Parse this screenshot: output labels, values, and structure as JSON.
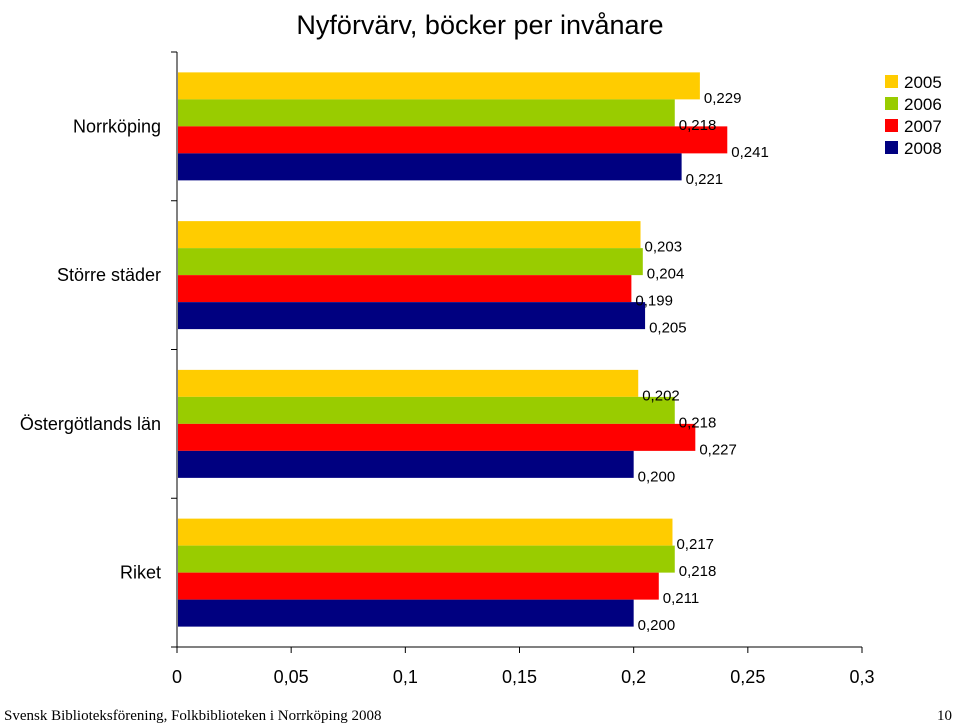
{
  "chart_data": {
    "type": "bar",
    "orientation": "horizontal",
    "title": "Nyförvärv, böcker per invånare",
    "categories": [
      "Norrköping",
      "Större städer",
      "Östergötlands län",
      "Riket"
    ],
    "series": [
      {
        "name": "2005",
        "color": "#FFCC00",
        "values": [
          0.229,
          0.203,
          0.202,
          0.217
        ],
        "labels": [
          "0,229",
          "0,203",
          "0,202",
          "0,217"
        ]
      },
      {
        "name": "2006",
        "color": "#99CC00",
        "values": [
          0.218,
          0.204,
          0.218,
          0.218
        ],
        "labels": [
          "0,218",
          "0,204",
          "0,218",
          "0,218"
        ]
      },
      {
        "name": "2007",
        "color": "#FF0000",
        "values": [
          0.241,
          0.199,
          0.227,
          0.211
        ],
        "labels": [
          "0,241",
          "0,199",
          "0,227",
          "0,211"
        ]
      },
      {
        "name": "2008",
        "color": "#000080",
        "values": [
          0.221,
          0.205,
          0.2,
          0.2
        ],
        "labels": [
          "0,221",
          "0,205",
          "0,200",
          "0,200"
        ]
      }
    ],
    "xlim": [
      0,
      0.3
    ],
    "ticks": [
      0,
      0.05,
      0.1,
      0.15,
      0.2,
      0.25,
      0.3
    ],
    "tick_labels": [
      "0",
      "0,05",
      "0,1",
      "0,15",
      "0,2",
      "0,25",
      "0,3"
    ],
    "grid": false,
    "legend_position": "top-right"
  },
  "footer": {
    "left": "Svensk Biblioteksförening, Folkbiblioteken i Norrköping 2008",
    "right": "10"
  }
}
